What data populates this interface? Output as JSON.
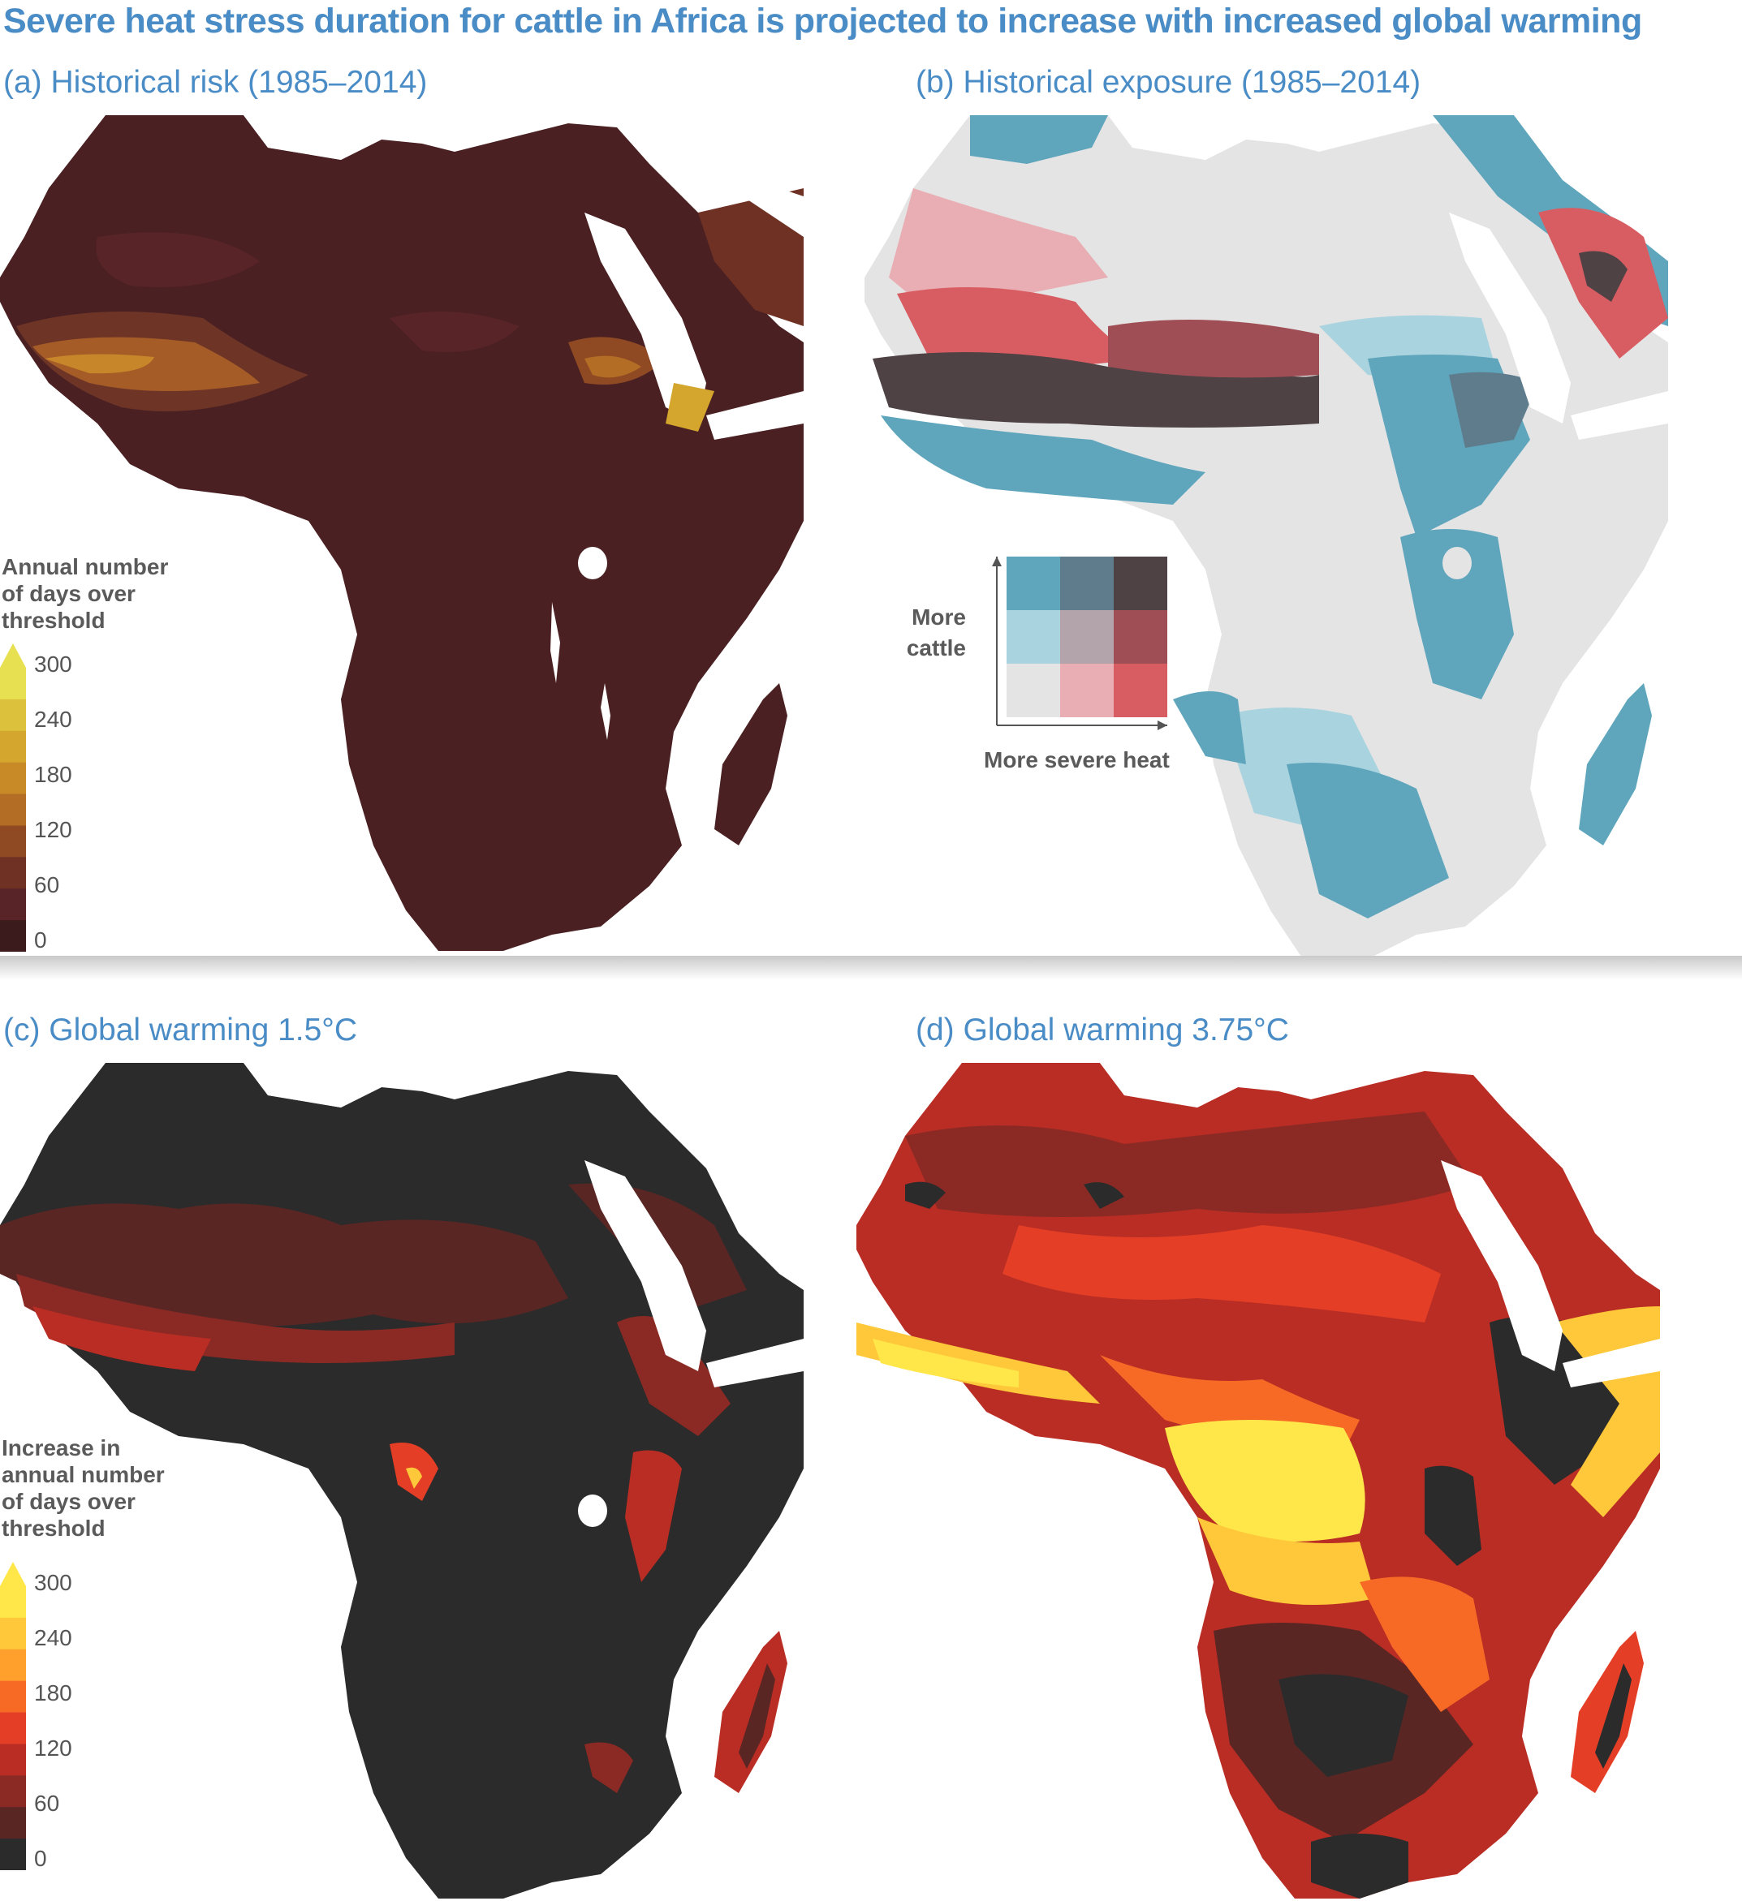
{
  "title": "Severe heat stress duration for cattle in Africa is projected to increase with increased global warming",
  "panels": {
    "a": {
      "title": "(a) Historical risk (1985–2014)"
    },
    "b": {
      "title": "(b) Historical exposure (1985–2014)"
    },
    "c": {
      "title": "(c) Global warming 1.5°C"
    },
    "d": {
      "title": "(d) Global warming 3.75°C"
    }
  },
  "legend_historical": {
    "title_lines": [
      "Annual number",
      "of days over",
      "threshold"
    ],
    "ticks": [
      "300",
      "240",
      "180",
      "120",
      "60",
      "0"
    ],
    "colors": [
      "#e7e050",
      "#dcc13c",
      "#d4a62e",
      "#c88a26",
      "#b46d25",
      "#8f4a24",
      "#6f3124",
      "#582428",
      "#3c1b1c"
    ]
  },
  "legend_increase": {
    "title_lines": [
      "Increase in",
      "annual number",
      "of days over",
      "threshold"
    ],
    "ticks": [
      "300",
      "240",
      "180",
      "120",
      "60",
      "0"
    ],
    "colors": [
      "#ffe74a",
      "#ffc83a",
      "#ff9f2c",
      "#f76a26",
      "#e43f26",
      "#b92d24",
      "#8b2a24",
      "#5a2624",
      "#2b2b2b"
    ]
  },
  "bivariate_legend": {
    "y_label_lines": [
      "More",
      "cattle"
    ],
    "x_label": "More severe heat",
    "grid_colors": [
      [
        "#5fa6bd",
        "#5e7c8c",
        "#4e4245"
      ],
      [
        "#a9d3de",
        "#b3a3aa",
        "#a04e55"
      ],
      [
        "#e4e4e4",
        "#e9aeb3",
        "#d85d62"
      ]
    ]
  }
}
